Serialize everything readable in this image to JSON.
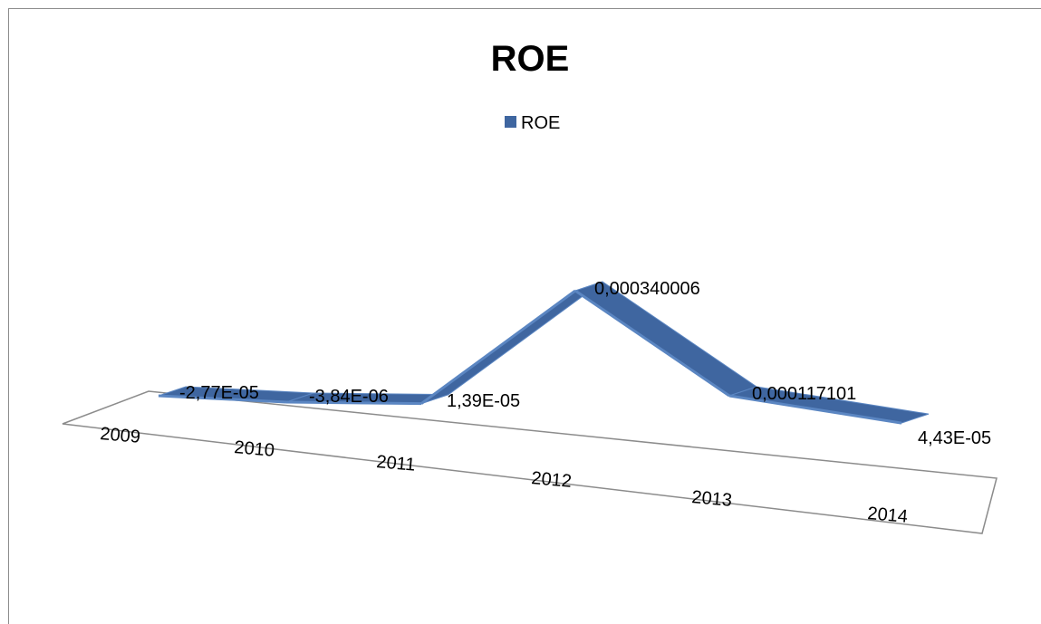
{
  "chart_data": {
    "type": "line",
    "title": "ROE",
    "legend": {
      "position": "top",
      "entries": [
        "ROE"
      ]
    },
    "categories": [
      "2009",
      "2010",
      "2011",
      "2012",
      "2013",
      "2014"
    ],
    "series": [
      {
        "name": "ROE",
        "values": [
          -2.77e-05,
          -3.84e-06,
          1.39e-05,
          0.000340006,
          0.000117101,
          4.43e-05
        ],
        "labels": [
          "-2,77E-05",
          "-3,84E-06",
          "1,39E-05",
          "0,000340006",
          "0,000117101",
          "4,43E-05"
        ],
        "color": "#3F66A0"
      }
    ],
    "colors": {
      "ribbon_top": "#3F66A0",
      "ribbon_edge": "#5B86C2",
      "floor": "#8C8C8C"
    }
  }
}
